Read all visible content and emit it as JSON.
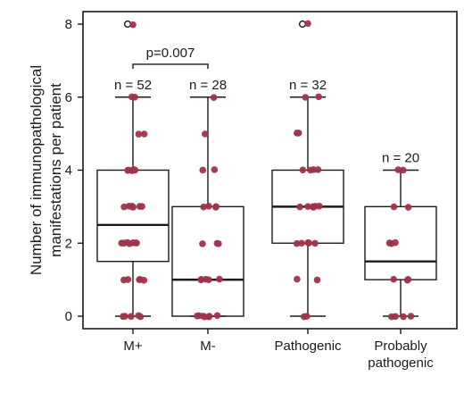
{
  "chart_data": {
    "type": "box",
    "ylabel": "Number of immunopathological manifestations per patient",
    "ylabel_lines": [
      "Number of immunopathological",
      "manifestations per patient"
    ],
    "ylim": [
      0,
      8
    ],
    "yticks": [
      0,
      2,
      4,
      6,
      8
    ],
    "groups": [
      {
        "label": [
          "M+"
        ],
        "n_label": "n = 52",
        "box": {
          "q1": 1.5,
          "median": 2.5,
          "q3": 4,
          "whisker_low": 0,
          "whisker_high": 6
        },
        "outliers": [
          8
        ],
        "points": [
          0,
          0,
          0,
          0,
          0,
          1,
          1,
          1,
          1,
          1,
          2,
          2,
          2,
          2,
          2,
          2,
          2,
          3,
          3,
          3,
          3,
          3,
          3,
          3,
          4,
          4,
          4,
          4,
          4,
          4,
          5,
          5,
          6,
          6,
          8
        ]
      },
      {
        "label": [
          "M-"
        ],
        "n_label": "n = 28",
        "box": {
          "q1": 0,
          "median": 1,
          "q3": 3,
          "whisker_low": 0,
          "whisker_high": 6
        },
        "outliers": [],
        "points": [
          0,
          0,
          0,
          0,
          0,
          0,
          0,
          1,
          1,
          1,
          1,
          1,
          2,
          2,
          2,
          3,
          3,
          3,
          3,
          4,
          4,
          5,
          6
        ]
      },
      {
        "label": [
          "Pathogenic"
        ],
        "n_label": "n = 32",
        "box": {
          "q1": 2,
          "median": 3,
          "q3": 4,
          "whisker_low": 0,
          "whisker_high": 6
        },
        "outliers": [
          8
        ],
        "points": [
          0,
          0,
          1,
          1,
          2,
          2,
          2,
          2,
          2,
          3,
          3,
          3,
          3,
          3,
          3,
          4,
          4,
          4,
          4,
          5,
          5,
          6,
          6,
          8
        ]
      },
      {
        "label": [
          "Probably",
          "pathogenic"
        ],
        "n_label": "n = 20",
        "box": {
          "q1": 1,
          "median": 1.5,
          "q3": 3,
          "whisker_low": 0,
          "whisker_high": 4
        },
        "outliers": [],
        "points": [
          0,
          0,
          0,
          0,
          1,
          1,
          1,
          2,
          2,
          2,
          3,
          3,
          4,
          4
        ]
      }
    ],
    "annotation": {
      "text": "p=0.007",
      "between": [
        0,
        1
      ],
      "y": 6.9
    },
    "point_color": "#a0334a",
    "outlier_marker_color": "#1a1a1a",
    "grid": false
  }
}
